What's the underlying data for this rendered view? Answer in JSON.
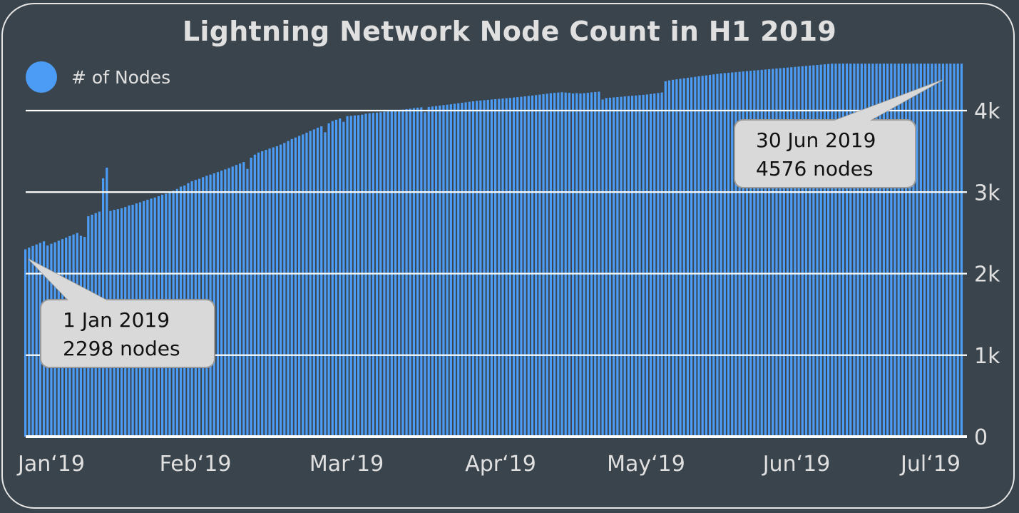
{
  "chart_data": {
    "type": "bar",
    "title": "Lightning Network Node Count in H1 2019",
    "legend": {
      "entries": [
        "# of Nodes"
      ],
      "placement": "top-left",
      "color": "#4c9cf5"
    },
    "ylim": [
      0,
      4500
    ],
    "grid": true,
    "y_ticks": [
      "0",
      "1k",
      "2k",
      "3k",
      "4k"
    ],
    "y_tick_values": [
      0,
      1000,
      2000,
      3000,
      4000
    ],
    "x_tick_labels": [
      "Jan‘19",
      "Feb‘19",
      "Mar‘19",
      "Apr‘19",
      "May‘19",
      "Jun‘19",
      "Jul‘19"
    ],
    "series": [
      {
        "name": "# of Nodes",
        "color": "#4c9cf5",
        "values": [
          2298,
          2320,
          2339,
          2358,
          2377,
          2396,
          2345,
          2366,
          2385,
          2404,
          2423,
          2442,
          2461,
          2480,
          2499,
          2464,
          2450,
          2704,
          2723,
          2742,
          2761,
          3170,
          3300,
          2769,
          2783,
          2791,
          2802,
          2817,
          2836,
          2845,
          2861,
          2875,
          2890,
          2907,
          2921,
          2934,
          2950,
          2968,
          2981,
          2999,
          3017,
          3039,
          3067,
          3081,
          3111,
          3134,
          3149,
          3163,
          3183,
          3201,
          3215,
          3231,
          3246,
          3263,
          3279,
          3295,
          3314,
          3333,
          3350,
          3369,
          3285,
          3422,
          3460,
          3486,
          3501,
          3518,
          3534,
          3549,
          3563,
          3583,
          3603,
          3627,
          3651,
          3670,
          3690,
          3707,
          3729,
          3750,
          3769,
          3790,
          3807,
          3735,
          3845,
          3872,
          3888,
          3904,
          3862,
          3932,
          3935,
          3940,
          3944,
          3950,
          3962,
          3968,
          3972,
          3975,
          3980,
          3986,
          3991,
          3995,
          4000,
          4006,
          4012,
          4018,
          4024,
          4030,
          4036,
          4040,
          3980,
          4045,
          4050,
          4056,
          4062,
          4068,
          4072,
          4078,
          4084,
          4090,
          4096,
          4102,
          4108,
          4114,
          4120,
          4124,
          4128,
          4132,
          4136,
          4140,
          4144,
          4148,
          4152,
          4156,
          4160,
          4165,
          4170,
          4175,
          4180,
          4185,
          4190,
          4196,
          4202,
          4208,
          4214,
          4218,
          4222,
          4226,
          4222,
          4218,
          4210,
          4214,
          4210,
          4214,
          4218,
          4224,
          4228,
          4232,
          4136,
          4154,
          4158,
          4162,
          4166,
          4170,
          4174,
          4178,
          4182,
          4186,
          4190,
          4194,
          4198,
          4204,
          4210,
          4216,
          4222,
          4360,
          4370,
          4378,
          4384,
          4390,
          4396,
          4402,
          4408,
          4414,
          4420,
          4426,
          4432,
          4438,
          4444,
          4450,
          4456,
          4460,
          4464,
          4468,
          4472,
          4476,
          4480,
          4484,
          4488,
          4492,
          4496,
          4500,
          4504,
          4508,
          4512,
          4516,
          4520,
          4524,
          4528,
          4532,
          4536,
          4540,
          4544,
          4548,
          4552,
          4556,
          4560,
          4564,
          4568,
          4572,
          4576,
          4576,
          4576,
          4576,
          4576,
          4576,
          4576,
          4576,
          4576,
          4576,
          4576,
          4576,
          4576,
          4576,
          4576,
          4576,
          4576,
          4576,
          4576,
          4576,
          4576,
          4576,
          4576,
          4576,
          4576,
          4576,
          4576,
          4576,
          4576,
          4576,
          4576,
          4576,
          4576,
          4576,
          4576,
          4576
        ]
      }
    ],
    "annotations": [
      {
        "date": "1 Jan 2019",
        "label": "2298 nodes",
        "value": 2298
      },
      {
        "date": "30 Jun 2019",
        "label": "4576 nodes",
        "value": 4576
      }
    ]
  }
}
